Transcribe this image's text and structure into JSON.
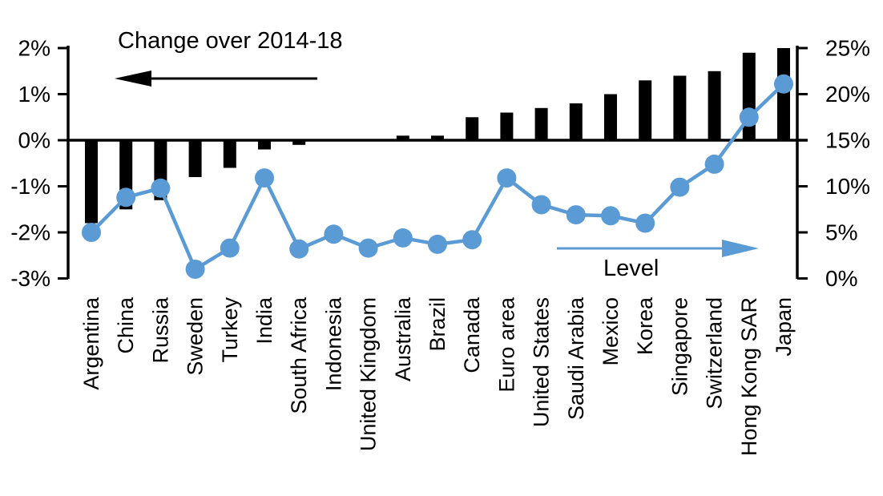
{
  "chart_data": {
    "type": "bar",
    "subtype": "combo-bar-line-dual-axis",
    "categories": [
      "Argentina",
      "China",
      "Russia",
      "Sweden",
      "Turkey",
      "India",
      "South Africa",
      "Indonesia",
      "United Kingdom",
      "Australia",
      "Brazil",
      "Canada",
      "Euro area",
      "United States",
      "Saudi Arabia",
      "Mexico",
      "Korea",
      "Singapore",
      "Switzerland",
      "Hong Kong SAR",
      "Japan"
    ],
    "series": [
      {
        "name": "Change over 2014-18",
        "type": "bar",
        "axis": "left",
        "color": "#000000",
        "values": [
          -1.8,
          -1.5,
          -1.3,
          -0.8,
          -0.6,
          -0.2,
          -0.1,
          0.0,
          0.0,
          0.1,
          0.1,
          0.5,
          0.6,
          0.7,
          0.8,
          1.0,
          1.3,
          1.4,
          1.5,
          1.9,
          2.0
        ]
      },
      {
        "name": "Level",
        "type": "line",
        "axis": "right",
        "color": "#5B9BD5",
        "values": [
          5.0,
          8.8,
          9.8,
          1.0,
          3.3,
          10.9,
          3.2,
          4.8,
          3.3,
          4.4,
          3.7,
          4.2,
          10.9,
          8.0,
          6.9,
          6.8,
          6.0,
          9.9,
          12.4,
          17.5,
          21.1
        ]
      }
    ],
    "left_axis": {
      "tick_labels": [
        "2%",
        "1%",
        "0%",
        "-1%",
        "-2%",
        "-3%"
      ],
      "tick_values": [
        2,
        1,
        0,
        -1,
        -2,
        -3
      ],
      "min": -3,
      "max": 2
    },
    "right_axis": {
      "tick_labels": [
        "25%",
        "20%",
        "15%",
        "10%",
        "5%",
        "0%"
      ],
      "tick_values": [
        25,
        20,
        15,
        10,
        5,
        0
      ],
      "min": 0,
      "max": 25
    },
    "annotations": {
      "left_series_label": {
        "text": "Change over 2014-18",
        "arrow_direction": "left",
        "color": "#000000"
      },
      "right_series_label": {
        "text": "Level",
        "arrow_direction": "right",
        "color": "#5B9BD5"
      }
    },
    "grid": "off",
    "legend_position": "in-plot-annotations",
    "background_color": "#ffffff"
  }
}
